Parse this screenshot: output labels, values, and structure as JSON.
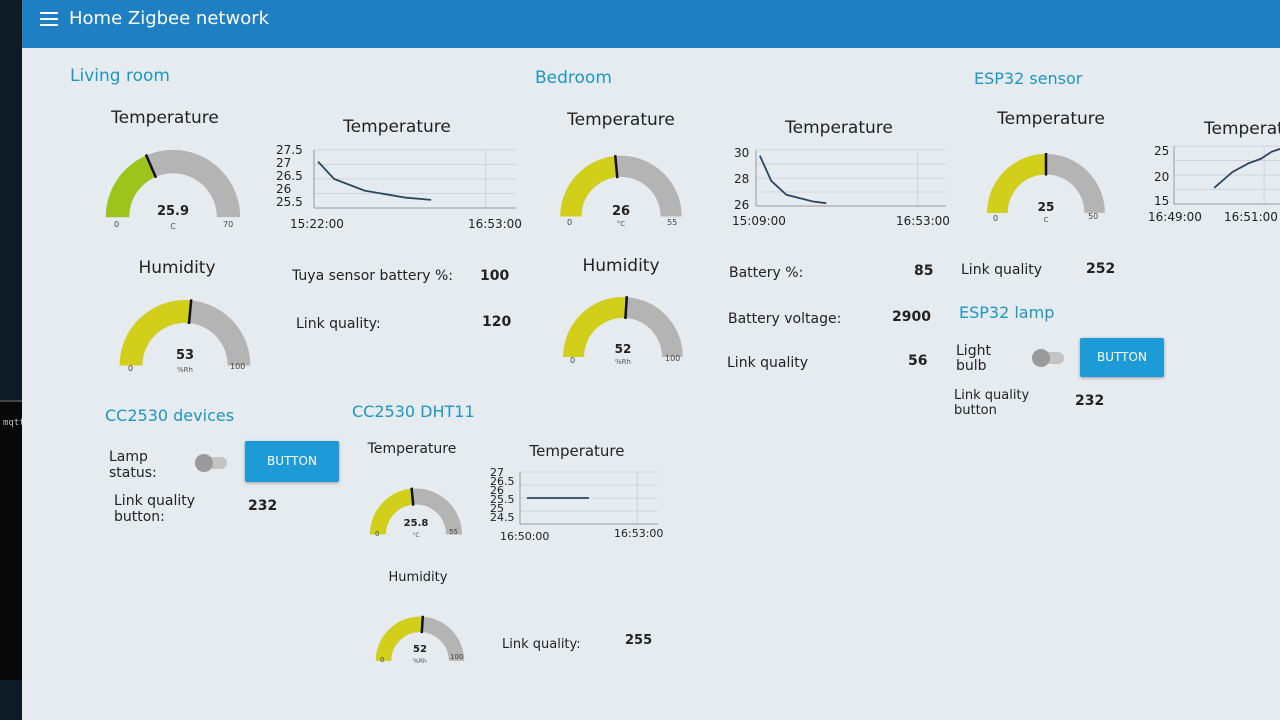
{
  "app": {
    "title": "Home Zigbee network"
  },
  "terminal": {
    "text": "mqtt"
  },
  "colors": {
    "header": "#1e7fc2",
    "accent": "#1d96c1",
    "gauge_green": "#9dc41b",
    "gauge_yellow": "#d2cf1a",
    "gauge_bg": "#b4b4b4"
  },
  "living_room": {
    "title": "Living room",
    "temperature_gauge": {
      "label": "Temperature",
      "value": "25.9",
      "unit": "C",
      "min": "0",
      "max": "70",
      "level": 0.37,
      "color": "#9dc41b"
    },
    "temperature_chart": {
      "label": "Temperature",
      "y_ticks": [
        "27.5",
        "27",
        "26.5",
        "26",
        "25.5"
      ],
      "x_ticks": [
        "15:22:00",
        "16:53:00"
      ]
    },
    "humidity_gauge": {
      "label": "Humidity",
      "value": "53",
      "unit": "%Rh",
      "min": "0",
      "max": "100",
      "level": 0.53,
      "color": "#d2cf1a"
    },
    "battery": {
      "label": "Tuya sensor battery %:",
      "value": "100"
    },
    "link": {
      "label": "Link quality:",
      "value": "120"
    }
  },
  "bedroom": {
    "title": "Bedroom",
    "temperature_gauge": {
      "label": "Temperature",
      "value": "26",
      "unit": "°C",
      "min": "0",
      "max": "55",
      "level": 0.47,
      "color": "#d2cf1a"
    },
    "temperature_chart": {
      "label": "Temperature",
      "y_ticks": [
        "30",
        "28",
        "26"
      ],
      "x_ticks": [
        "15:09:00",
        "16:53:00"
      ]
    },
    "humidity_gauge": {
      "label": "Humidity",
      "value": "52",
      "unit": "%Rh",
      "min": "0",
      "max": "100",
      "level": 0.52,
      "color": "#d2cf1a"
    },
    "battery": {
      "label": "Battery %:",
      "value": "85"
    },
    "voltage": {
      "label": "Battery voltage:",
      "value": "2900"
    },
    "link": {
      "label": "Link quality",
      "value": "56"
    }
  },
  "esp32_sensor": {
    "title": "ESP32 sensor",
    "temperature_gauge": {
      "label": "Temperature",
      "value": "25",
      "unit": "C",
      "min": "0",
      "max": "50",
      "level": 0.5,
      "color": "#d2cf1a"
    },
    "temperature_chart": {
      "label": "Temperatu",
      "y_ticks": [
        "25",
        "20",
        "15"
      ],
      "x_ticks": [
        "16:49:00",
        "16:51:00"
      ]
    },
    "link": {
      "label": "Link quality",
      "value": "252"
    }
  },
  "esp32_lamp": {
    "title": "ESP32 lamp",
    "light_label": "Light bulb",
    "button_label": "BUTTON",
    "link_label": "Link quality button",
    "link_value": "232"
  },
  "cc2530_devices": {
    "title": "CC2530 devices",
    "lamp_label": "Lamp status:",
    "button_label": "BUTTON",
    "link_label": "Link quality button:",
    "link_value": "232"
  },
  "cc2530_dht11": {
    "title": "CC2530 DHT11",
    "temperature_gauge": {
      "label": "Temperature",
      "value": "25.8",
      "unit": "°C",
      "min": "0",
      "max": "55",
      "level": 0.47,
      "color": "#d2cf1a"
    },
    "temperature_chart": {
      "label": "Temperature",
      "y_ticks": [
        "27",
        "26.5",
        "26",
        "25.5",
        "25",
        "24.5"
      ],
      "x_ticks": [
        "16:50:00",
        "16:53:00"
      ]
    },
    "humidity_gauge": {
      "label": "Humidity",
      "value": "52",
      "unit": "%Rh",
      "min": "0",
      "max": "100",
      "level": 0.52,
      "color": "#d2cf1a"
    },
    "link": {
      "label": "Link quality:",
      "value": "255"
    }
  }
}
